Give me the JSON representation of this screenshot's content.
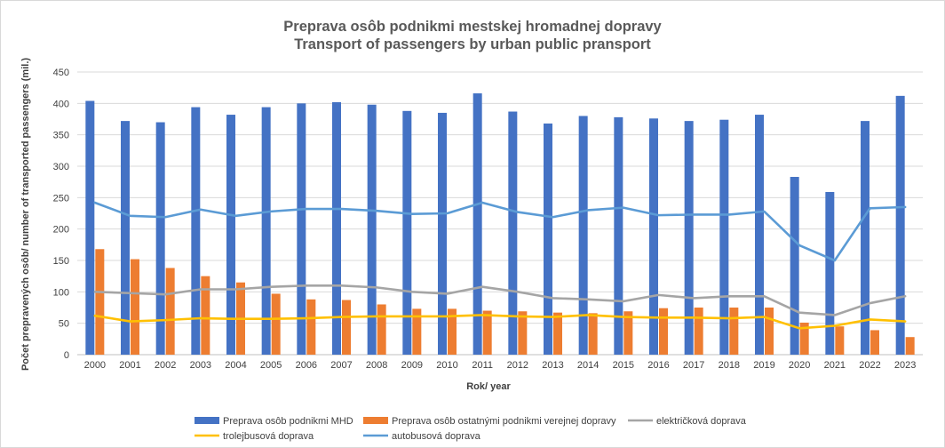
{
  "chart_data": {
    "type": "bar",
    "title": "Preprava osôb podnikmi mestskej hromadnej dopravy",
    "subtitle": "Transport of passengers by urban public pransport",
    "xlabel": "Rok/ year",
    "ylabel": "Počet prepravených osôb/ number of transported passengers (mil.)",
    "ylim": [
      0,
      450
    ],
    "yticks": [
      0,
      50,
      100,
      150,
      200,
      250,
      300,
      350,
      400,
      450
    ],
    "grid": true,
    "legend_position": "bottom",
    "categories": [
      "2000",
      "2001",
      "2002",
      "2003",
      "2004",
      "2005",
      "2006",
      "2007",
      "2008",
      "2009",
      "2010",
      "2011",
      "2012",
      "2013",
      "2014",
      "2015",
      "2016",
      "2017",
      "2018",
      "2019",
      "2020",
      "2021",
      "2022",
      "2023"
    ],
    "series": [
      {
        "name": "Preprava osôb podnikmi MHD",
        "kind": "bar",
        "color": "#4472c4",
        "values": [
          404,
          372,
          370,
          394,
          382,
          394,
          400,
          402,
          398,
          388,
          385,
          416,
          387,
          368,
          380,
          378,
          376,
          372,
          374,
          382,
          283,
          259,
          372,
          412
        ]
      },
      {
        "name": "Preprava osôb ostatnými podnikmi verejnej dopravy",
        "kind": "bar",
        "color": "#ed7d31",
        "values": [
          168,
          152,
          138,
          125,
          115,
          97,
          88,
          87,
          80,
          73,
          73,
          70,
          69,
          67,
          66,
          69,
          74,
          75,
          75,
          75,
          51,
          45,
          39,
          28
        ]
      },
      {
        "name": "električková doprava",
        "kind": "line",
        "color": "#a5a5a5",
        "values": [
          100,
          98,
          96,
          104,
          104,
          108,
          110,
          110,
          107,
          100,
          97,
          108,
          100,
          90,
          88,
          85,
          95,
          90,
          93,
          93,
          67,
          63,
          82,
          93
        ]
      },
      {
        "name": "trolejbusová doprava",
        "kind": "line",
        "color": "#ffc000",
        "values": [
          62,
          53,
          55,
          58,
          57,
          57,
          58,
          60,
          61,
          61,
          61,
          63,
          61,
          60,
          63,
          60,
          59,
          59,
          58,
          60,
          42,
          46,
          56,
          53
        ]
      },
      {
        "name": "autobusová doprava",
        "kind": "line",
        "color": "#5b9bd5",
        "values": [
          242,
          221,
          219,
          231,
          221,
          228,
          232,
          232,
          229,
          224,
          225,
          242,
          227,
          219,
          230,
          234,
          222,
          223,
          223,
          228,
          174,
          150,
          233,
          235
        ]
      }
    ]
  }
}
